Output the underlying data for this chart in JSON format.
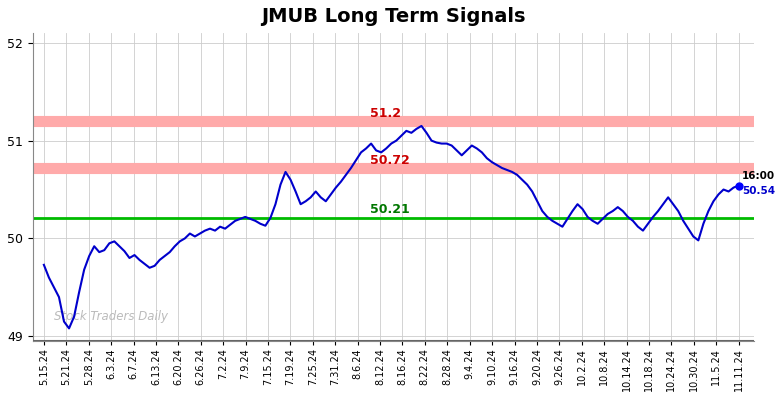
{
  "title": "JMUB Long Term Signals",
  "title_fontsize": 14,
  "line_color": "#0000cc",
  "line_width": 1.5,
  "background_color": "#ffffff",
  "grid_color": "#cccccc",
  "ylim": [
    48.95,
    52.1
  ],
  "yticks": [
    49,
    50,
    51,
    52
  ],
  "hline_red1": 51.2,
  "hline_red2": 50.72,
  "hline_green": 50.21,
  "hline_red_color": "#ffaaaa",
  "hline_green_color": "#00bb00",
  "label_red1_text": "51.2",
  "label_red1_color": "#cc0000",
  "label_red2_text": "50.72",
  "label_red2_color": "#cc0000",
  "label_green_text": "50.21",
  "label_green_color": "#007700",
  "watermark_text": "Stock Traders Daily",
  "watermark_color": "#bbbbbb",
  "end_label_time": "16:00",
  "end_label_price": "50.54",
  "end_dot_color": "#0000ff",
  "xlabel_fontsize": 7,
  "tick_dates": [
    "5.15.24",
    "5.21.24",
    "5.28.24",
    "6.3.24",
    "6.7.24",
    "6.13.24",
    "6.20.24",
    "6.26.24",
    "7.2.24",
    "7.9.24",
    "7.15.24",
    "7.19.24",
    "7.25.24",
    "7.31.24",
    "8.6.24",
    "8.12.24",
    "8.16.24",
    "8.22.24",
    "8.28.24",
    "9.4.24",
    "9.10.24",
    "9.16.24",
    "9.20.24",
    "9.26.24",
    "10.2.24",
    "10.8.24",
    "10.14.24",
    "10.18.24",
    "10.24.24",
    "10.30.24",
    "11.5.24",
    "11.11.24"
  ],
  "prices": [
    49.73,
    49.6,
    49.5,
    49.4,
    49.15,
    49.08,
    49.2,
    49.45,
    49.68,
    49.82,
    49.92,
    49.86,
    49.88,
    49.95,
    49.97,
    49.92,
    49.87,
    49.8,
    49.83,
    49.78,
    49.74,
    49.7,
    49.72,
    49.78,
    49.82,
    49.86,
    49.92,
    49.97,
    50.0,
    50.05,
    50.02,
    50.05,
    50.08,
    50.1,
    50.08,
    50.12,
    50.1,
    50.14,
    50.18,
    50.2,
    50.22,
    50.2,
    50.18,
    50.15,
    50.13,
    50.21,
    50.35,
    50.55,
    50.68,
    50.6,
    50.48,
    50.35,
    50.38,
    50.42,
    50.48,
    50.42,
    50.38,
    50.45,
    50.52,
    50.58,
    50.65,
    50.72,
    50.8,
    50.88,
    50.92,
    50.97,
    50.9,
    50.88,
    50.92,
    50.97,
    51.0,
    51.05,
    51.1,
    51.08,
    51.12,
    51.15,
    51.08,
    51.0,
    50.98,
    50.97,
    50.97,
    50.95,
    50.9,
    50.85,
    50.9,
    50.95,
    50.92,
    50.88,
    50.82,
    50.78,
    50.75,
    50.72,
    50.7,
    50.68,
    50.65,
    50.6,
    50.55,
    50.48,
    50.38,
    50.28,
    50.22,
    50.18,
    50.15,
    50.12,
    50.2,
    50.28,
    50.35,
    50.3,
    50.22,
    50.18,
    50.15,
    50.2,
    50.25,
    50.28,
    50.32,
    50.28,
    50.22,
    50.18,
    50.12,
    50.08,
    50.15,
    50.22,
    50.28,
    50.35,
    50.42,
    50.35,
    50.28,
    50.18,
    50.1,
    50.02,
    49.98,
    50.15,
    50.28,
    50.38,
    50.45,
    50.5,
    50.48,
    50.52,
    50.54
  ]
}
